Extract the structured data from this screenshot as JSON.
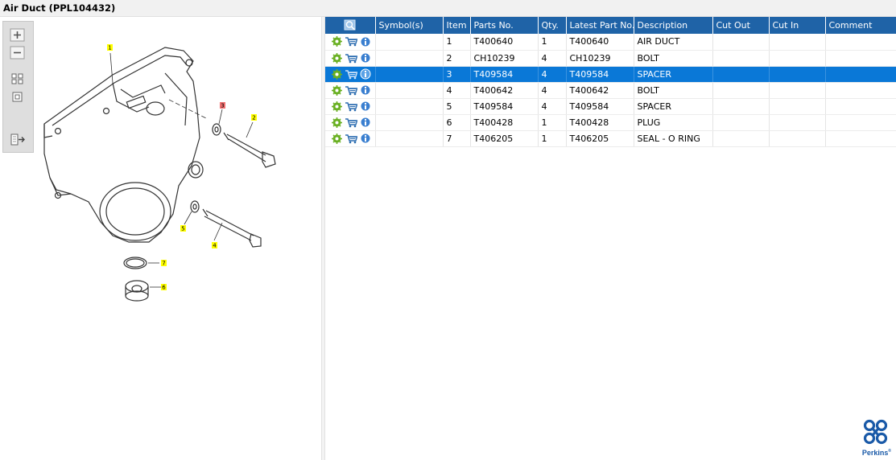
{
  "window": {
    "title": "Air Duct (PPL104432)"
  },
  "toolbox": {
    "buttons": [
      "zoom-in",
      "zoom-out",
      "fit-all",
      "fit-window",
      "export"
    ]
  },
  "diagram": {
    "callouts": [
      {
        "label": "1",
        "color": "#ffff00"
      },
      {
        "label": "2",
        "color": "#ffff00"
      },
      {
        "label": "3",
        "color": "#f07070"
      },
      {
        "label": "4",
        "color": "#ffff00"
      },
      {
        "label": "5",
        "color": "#ffff00"
      },
      {
        "label": "6",
        "color": "#ffff00"
      },
      {
        "label": "7",
        "color": "#ffff00"
      }
    ]
  },
  "table": {
    "columns": [
      "Symbol(s)",
      "Item",
      "Parts No.",
      "Qty.",
      "Latest Part No.",
      "Description",
      "Cut Out",
      "Cut In",
      "Comment"
    ],
    "rows": [
      {
        "item": "1",
        "parts_no": "T400640",
        "qty": "1",
        "latest": "T400640",
        "desc": "AIR DUCT",
        "selected": false
      },
      {
        "item": "2",
        "parts_no": "CH10239",
        "qty": "4",
        "latest": "CH10239",
        "desc": "BOLT",
        "selected": false
      },
      {
        "item": "3",
        "parts_no": "T409584",
        "qty": "4",
        "latest": "T409584",
        "desc": "SPACER",
        "selected": true
      },
      {
        "item": "4",
        "parts_no": "T400642",
        "qty": "4",
        "latest": "T400642",
        "desc": "BOLT",
        "selected": false
      },
      {
        "item": "5",
        "parts_no": "T409584",
        "qty": "4",
        "latest": "T409584",
        "desc": "SPACER",
        "selected": false
      },
      {
        "item": "6",
        "parts_no": "T400428",
        "qty": "1",
        "latest": "T400428",
        "desc": "PLUG",
        "selected": false
      },
      {
        "item": "7",
        "parts_no": "T406205",
        "qty": "1",
        "latest": "T406205",
        "desc": "SEAL - O RING",
        "selected": false
      }
    ]
  },
  "brand": {
    "name": "Perkins",
    "color": "#1a5aa8"
  },
  "colors": {
    "header": "#1f63a7",
    "selected_row": "#0a78d7",
    "gear": "#6ab023",
    "cart": "#2b6cb0",
    "info": "#3a7fd0"
  }
}
